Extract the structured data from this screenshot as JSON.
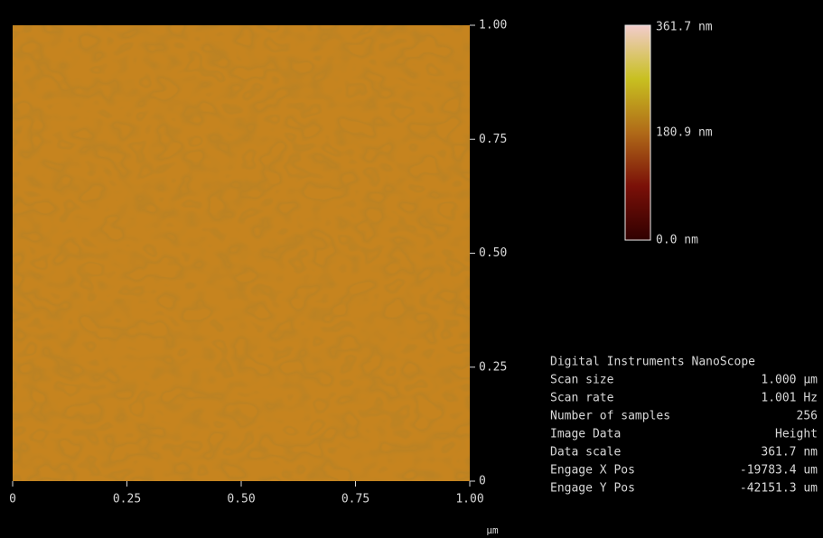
{
  "image": {
    "xlim": [
      0,
      1
    ],
    "ylim": [
      0,
      1
    ],
    "xticks": [
      0,
      0.25,
      {
        "value": 0.5,
        "label": "0.50"
      },
      0.75,
      {
        "value": 1,
        "label": "1.00"
      }
    ],
    "yticks": [
      0,
      0.25,
      {
        "value": 0.5,
        "label": "0.50"
      },
      0.75,
      {
        "value": 1,
        "label": "1.00"
      }
    ],
    "unit": "µm"
  },
  "colorbar": {
    "top": "361.7 nm",
    "middle": "180.9 nm",
    "bottom": "0.0 nm"
  },
  "info": {
    "title": "Digital Instruments NanoScope",
    "rows": [
      [
        "Scan size",
        "1.000 µm"
      ],
      [
        "Scan rate",
        "1.001 Hz"
      ],
      [
        "Number of samples",
        "256"
      ],
      [
        "Image Data",
        "Height"
      ],
      [
        "Data scale",
        "361.7 nm"
      ],
      [
        "Engage X Pos",
        "-19783.4 um"
      ],
      [
        "Engage Y Pos",
        "-42151.3 um"
      ]
    ]
  }
}
